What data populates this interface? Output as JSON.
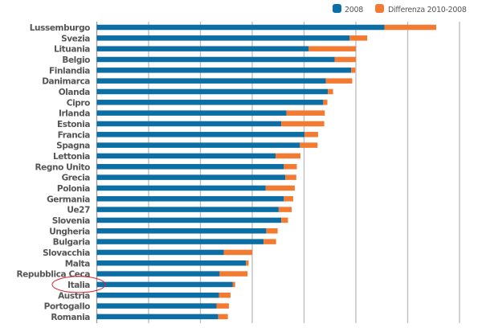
{
  "chart_data": {
    "type": "bar",
    "orientation": "horizontal",
    "stacked": true,
    "title": "",
    "xlabel": "",
    "ylabel": "",
    "xlim": [
      0,
      7
    ],
    "grid": true,
    "legend_position": "top-right",
    "colors": {
      "2008": "#0b6ea5",
      "Differenza 2010-2008": "#f37a31",
      "highlight": "#d8262e"
    },
    "highlighted_category": "Italia",
    "categories": [
      "Lussemburgo",
      "Svezia",
      "Lituania",
      "Belgio",
      "Finlandia",
      "Danimarca",
      "Olanda",
      "Cipro",
      "Irlanda",
      "Estonia",
      "Francia",
      "Spagna",
      "Lettonia",
      "Regno Unito",
      "Grecia",
      "Polonia",
      "Germania",
      "Ue27",
      "Slovenia",
      "Ungheria",
      "Bulgaria",
      "Slovacchia",
      "Malta",
      "Repubblica Ceca",
      "Italia",
      "Austria",
      "Portogallo",
      "Romania"
    ],
    "series": [
      {
        "name": "2008",
        "values": [
          5.55,
          4.88,
          4.09,
          4.59,
          4.91,
          4.42,
          4.46,
          4.37,
          3.66,
          3.56,
          4.01,
          3.92,
          3.45,
          3.61,
          3.64,
          3.26,
          3.61,
          3.51,
          3.56,
          3.27,
          3.22,
          2.45,
          2.88,
          2.37,
          2.62,
          2.36,
          2.31,
          2.34
        ]
      },
      {
        "name": "Differenza 2010-2008",
        "values": [
          1.0,
          0.34,
          0.91,
          0.41,
          0.08,
          0.51,
          0.1,
          0.08,
          0.74,
          0.83,
          0.26,
          0.34,
          0.48,
          0.25,
          0.21,
          0.56,
          0.18,
          0.25,
          0.13,
          0.22,
          0.24,
          0.55,
          0.05,
          0.54,
          0.05,
          0.22,
          0.24,
          0.19
        ]
      }
    ]
  }
}
